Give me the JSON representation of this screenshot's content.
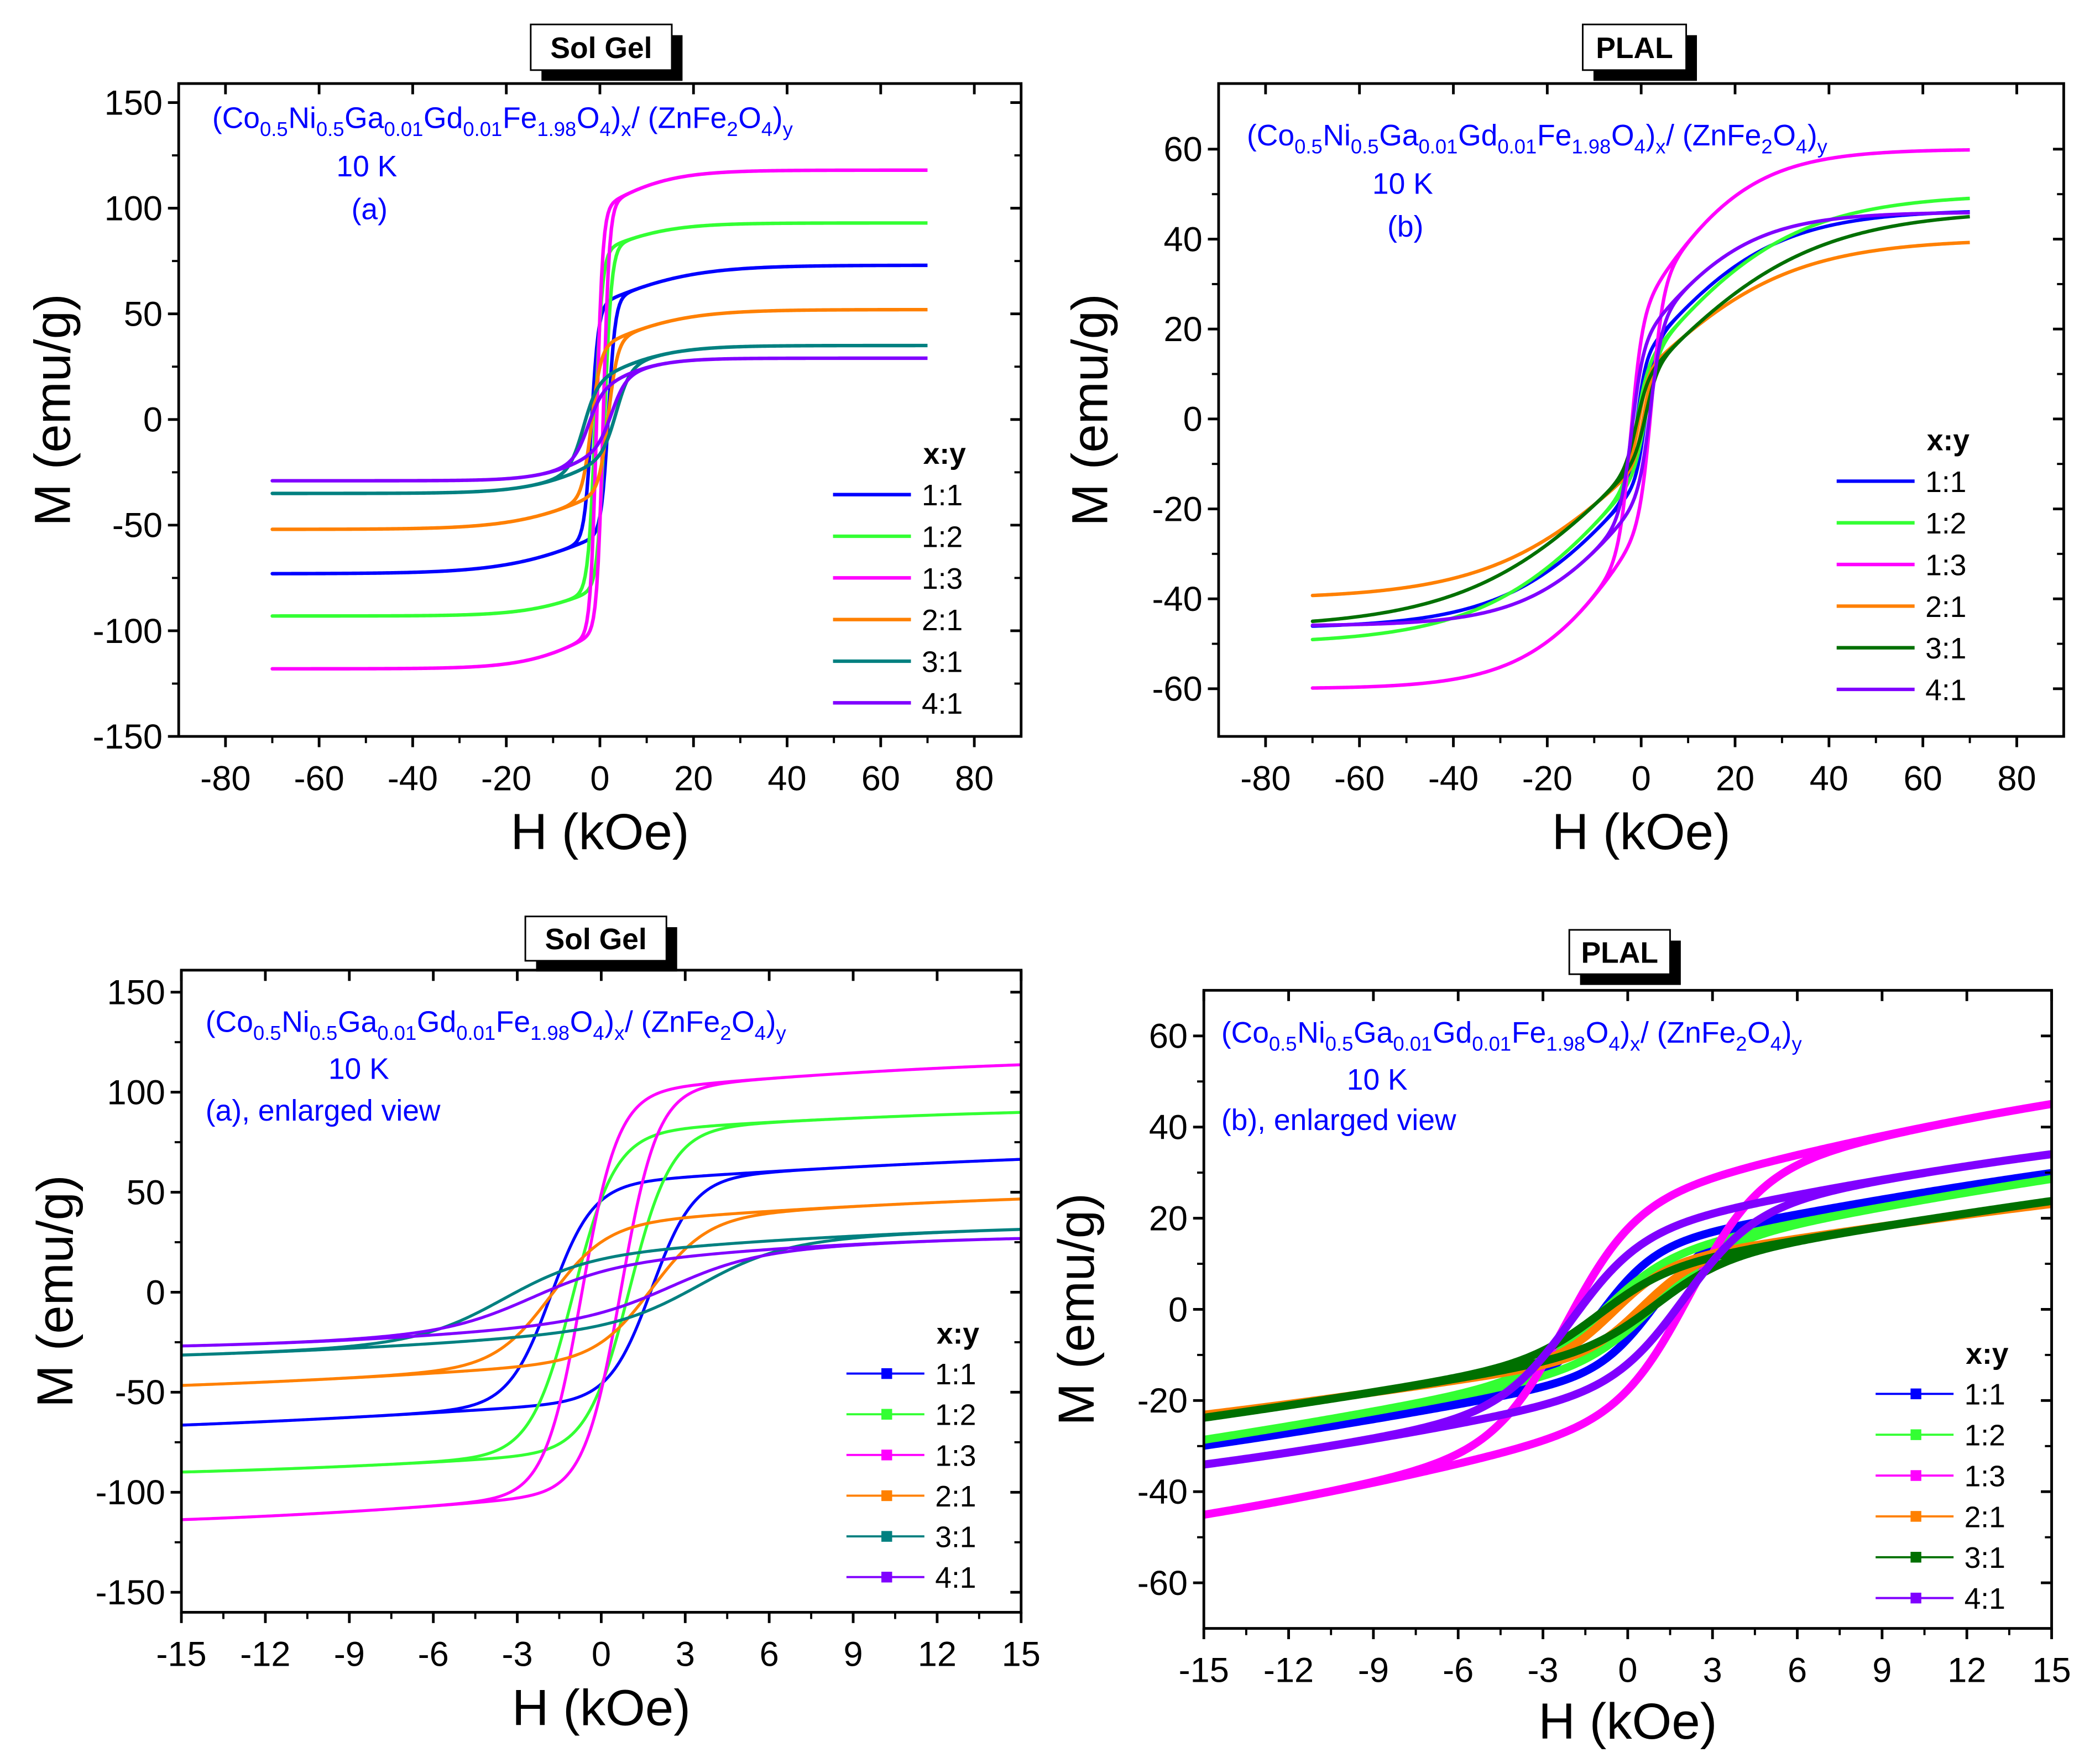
{
  "chart_data": [
    {
      "type": "line",
      "title": "Sol Gel",
      "xlabel": "H (kOe)",
      "ylabel": "M (emu/g)",
      "xlim": [
        -90,
        90
      ],
      "ylim": [
        -150,
        159
      ],
      "xticks": [
        -80,
        -60,
        -40,
        -20,
        0,
        20,
        40,
        60,
        80
      ],
      "yticks": [
        -150,
        -100,
        -50,
        0,
        50,
        100,
        150
      ],
      "formula": [
        [
          "(Co",
          ""
        ],
        [
          "0.5",
          "sub"
        ],
        [
          "Ni",
          ""
        ],
        [
          "0.5",
          "sub"
        ],
        [
          "Ga",
          ""
        ],
        [
          "0.01",
          "sub"
        ],
        [
          "Gd",
          ""
        ],
        [
          "0.01",
          "sub"
        ],
        [
          "Fe",
          ""
        ],
        [
          "1.98",
          "sub"
        ],
        [
          "O",
          ""
        ],
        [
          "4",
          "sub"
        ],
        [
          ")",
          ""
        ],
        [
          "x",
          "sub"
        ],
        [
          " / (ZnFe",
          ""
        ],
        [
          "2",
          "sub"
        ],
        [
          "O",
          ""
        ],
        [
          "4",
          "sub"
        ],
        [
          ")",
          ""
        ],
        [
          "y",
          "sub"
        ]
      ],
      "annotations": [
        "10 K",
        "(a)"
      ],
      "legend_title": "x:y",
      "h_max": 70,
      "series": [
        {
          "name": "1:1",
          "color": "#0000ff",
          "ms": 55,
          "hc": 1.8,
          "w": 1.5,
          "ms2": 18,
          "w2": 20,
          "m_at_hmax": 73
        },
        {
          "name": "1:2",
          "color": "#33ff33",
          "ms": 80,
          "hc": 1.0,
          "w": 1.5,
          "ms2": 13,
          "w2": 15,
          "m_at_hmax": 93
        },
        {
          "name": "1:3",
          "color": "#ff00ff",
          "ms": 100,
          "hc": 0.7,
          "w": 1.3,
          "ms2": 18,
          "w2": 15,
          "m_at_hmax": 118
        },
        {
          "name": "2:1",
          "color": "#ff8000",
          "ms": 35,
          "hc": 1.8,
          "w": 2,
          "ms2": 17,
          "w2": 18,
          "m_at_hmax": 52
        },
        {
          "name": "3:1",
          "color": "#008080",
          "ms": 20,
          "hc": 3.5,
          "w": 3,
          "ms2": 15,
          "w2": 15,
          "m_at_hmax": 35
        },
        {
          "name": "4:1",
          "color": "#8000ff",
          "ms": 15,
          "hc": 2.5,
          "w": 3,
          "ms2": 14,
          "w2": 12,
          "m_at_hmax": 29
        }
      ]
    },
    {
      "type": "line",
      "title": "PLAL",
      "xlabel": "H (kOe)",
      "ylabel": "M (emu/g)",
      "xlim": [
        -90,
        90
      ],
      "ylim": [
        -70.6,
        74.6
      ],
      "xticks": [
        -80,
        -60,
        -40,
        -20,
        0,
        20,
        40,
        60,
        80
      ],
      "yticks": [
        -60,
        -40,
        -20,
        0,
        20,
        40,
        60
      ],
      "formula": [
        [
          "(Co",
          ""
        ],
        [
          "0.5",
          "sub"
        ],
        [
          "Ni",
          ""
        ],
        [
          "0.5",
          "sub"
        ],
        [
          "Ga",
          ""
        ],
        [
          "0.01",
          "sub"
        ],
        [
          "Gd",
          ""
        ],
        [
          "0.01",
          "sub"
        ],
        [
          "Fe",
          ""
        ],
        [
          "1.98",
          "sub"
        ],
        [
          "O",
          ""
        ],
        [
          "4",
          "sub"
        ],
        [
          ")",
          ""
        ],
        [
          "x",
          "sub"
        ],
        [
          " / (ZnFe",
          ""
        ],
        [
          "2",
          "sub"
        ],
        [
          "O",
          ""
        ],
        [
          "4",
          "sub"
        ],
        [
          ")",
          ""
        ],
        [
          "y",
          "sub"
        ]
      ],
      "annotations": [
        "10 K",
        "(b)"
      ],
      "legend_title": "x:y",
      "h_max": 70,
      "series": [
        {
          "name": "1:1",
          "color": "#0000ff",
          "ms": 14,
          "hc": 1.0,
          "w": 2,
          "ms2": 32.5,
          "w2": 28,
          "m_at_hmax": 46
        },
        {
          "name": "1:2",
          "color": "#33ff33",
          "ms": 12,
          "hc": 1.0,
          "w": 2.5,
          "ms2": 38,
          "w2": 32,
          "m_at_hmax": 49
        },
        {
          "name": "1:3",
          "color": "#ff00ff",
          "ms": 25,
          "hc": 2.2,
          "w": 2.5,
          "ms2": 35,
          "w2": 23,
          "m_at_hmax": 60
        },
        {
          "name": "2:1",
          "color": "#ff8000",
          "ms": 10,
          "hc": 0.5,
          "w": 2,
          "ms2": 30,
          "w2": 32,
          "m_at_hmax": 39
        },
        {
          "name": "3:1",
          "color": "#007000",
          "ms": 9,
          "hc": 1.0,
          "w": 2.5,
          "ms2": 37.5,
          "w2": 36,
          "m_at_hmax": 45
        },
        {
          "name": "4:1",
          "color": "#8000ff",
          "ms": 18,
          "hc": 2.0,
          "w": 2.5,
          "ms2": 28,
          "w2": 23,
          "m_at_hmax": 46
        }
      ]
    },
    {
      "type": "line",
      "title": "Sol Gel",
      "xlabel": "H (kOe)",
      "ylabel": "M (emu/g)",
      "xlim": [
        -15,
        15
      ],
      "ylim": [
        -160,
        161
      ],
      "xticks": [
        -15,
        -12,
        -9,
        -6,
        -3,
        0,
        3,
        6,
        9,
        12,
        15
      ],
      "yticks": [
        -150,
        -100,
        -50,
        0,
        50,
        100,
        150
      ],
      "formula": [
        [
          "(Co",
          ""
        ],
        [
          "0.5",
          "sub"
        ],
        [
          "Ni",
          ""
        ],
        [
          "0.5",
          "sub"
        ],
        [
          "Ga",
          ""
        ],
        [
          "0.01",
          "sub"
        ],
        [
          "Gd",
          ""
        ],
        [
          "0.01",
          "sub"
        ],
        [
          "Fe",
          ""
        ],
        [
          "1.98",
          "sub"
        ],
        [
          "O",
          ""
        ],
        [
          "4",
          "sub"
        ],
        [
          ")",
          ""
        ],
        [
          "x",
          "sub"
        ],
        [
          " / (ZnFe",
          ""
        ],
        [
          "2",
          "sub"
        ],
        [
          "O",
          ""
        ],
        [
          "4",
          "sub"
        ],
        [
          ")",
          ""
        ],
        [
          "y",
          "sub"
        ]
      ],
      "annotations": [
        "10 K",
        "(a), enlarged view"
      ],
      "legend_title": "x:y",
      "h_max": 15,
      "series": [
        {
          "name": "1:1",
          "color": "#0000ff",
          "ms": 55,
          "hc": 1.8,
          "w": 1.5,
          "ms2": 18,
          "w2": 20,
          "m_at_hmax": 64
        },
        {
          "name": "1:2",
          "color": "#33ff33",
          "ms": 80,
          "hc": 1.0,
          "w": 1.5,
          "ms2": 13,
          "w2": 15,
          "m_at_hmax": 88
        },
        {
          "name": "1:3",
          "color": "#ff00ff",
          "ms": 100,
          "hc": 0.7,
          "w": 1.3,
          "ms2": 18,
          "w2": 15,
          "m_at_hmax": 112
        },
        {
          "name": "2:1",
          "color": "#ff8000",
          "ms": 35,
          "hc": 1.8,
          "w": 2,
          "ms2": 17,
          "w2": 18,
          "m_at_hmax": 45
        },
        {
          "name": "3:1",
          "color": "#008080",
          "ms": 20,
          "hc": 3.5,
          "w": 3,
          "ms2": 15,
          "w2": 15,
          "m_at_hmax": 28
        },
        {
          "name": "4:1",
          "color": "#8000ff",
          "ms": 15,
          "hc": 2.5,
          "w": 3,
          "ms2": 14,
          "w2": 12,
          "m_at_hmax": 23
        }
      ]
    },
    {
      "type": "line",
      "title": "PLAL",
      "xlabel": "H (kOe)",
      "ylabel": "M (emu/g)",
      "xlim": [
        -15,
        15
      ],
      "ylim": [
        -70,
        70
      ],
      "xticks": [
        -15,
        -12,
        -9,
        -6,
        -3,
        0,
        3,
        6,
        9,
        12,
        15
      ],
      "yticks": [
        -60,
        -40,
        -20,
        0,
        20,
        40,
        60
      ],
      "formula": [
        [
          "(Co",
          ""
        ],
        [
          "0.5",
          "sub"
        ],
        [
          "Ni",
          ""
        ],
        [
          "0.5",
          "sub"
        ],
        [
          "Ga",
          ""
        ],
        [
          "0.01",
          "sub"
        ],
        [
          "Gd",
          ""
        ],
        [
          "0.01",
          "sub"
        ],
        [
          "Fe",
          ""
        ],
        [
          "1.98",
          "sub"
        ],
        [
          "O",
          ""
        ],
        [
          "4",
          "sub"
        ],
        [
          ")",
          ""
        ],
        [
          "x",
          "sub"
        ],
        [
          " / (ZnFe",
          ""
        ],
        [
          "2",
          "sub"
        ],
        [
          "O",
          ""
        ],
        [
          "4",
          "sub"
        ],
        [
          ")",
          ""
        ],
        [
          "y",
          "sub"
        ]
      ],
      "annotations": [
        "10 K",
        "(b), enlarged view"
      ],
      "legend_title": "x:y",
      "h_max": 15,
      "series": [
        {
          "name": "1:1",
          "color": "#0000ff",
          "ms": 14,
          "hc": 1.0,
          "w": 2,
          "ms2": 32.5,
          "w2": 28,
          "m_at_hmax": 30
        },
        {
          "name": "1:2",
          "color": "#33ff33",
          "ms": 12,
          "hc": 1.0,
          "w": 2.5,
          "ms2": 38,
          "w2": 32,
          "m_at_hmax": 29
        },
        {
          "name": "1:3",
          "color": "#ff00ff",
          "ms": 25,
          "hc": 2.2,
          "w": 2.5,
          "ms2": 35,
          "w2": 23,
          "m_at_hmax": 45
        },
        {
          "name": "2:1",
          "color": "#ff8000",
          "ms": 10,
          "hc": 0.5,
          "w": 2,
          "ms2": 30,
          "w2": 32,
          "m_at_hmax": 23
        },
        {
          "name": "3:1",
          "color": "#007000",
          "ms": 9,
          "hc": 1.0,
          "w": 2.5,
          "ms2": 37.5,
          "w2": 36,
          "m_at_hmax": 24
        },
        {
          "name": "4:1",
          "color": "#8000ff",
          "ms": 18,
          "hc": 2.0,
          "w": 2.5,
          "ms2": 28,
          "w2": 23,
          "m_at_hmax": 34
        }
      ]
    }
  ]
}
